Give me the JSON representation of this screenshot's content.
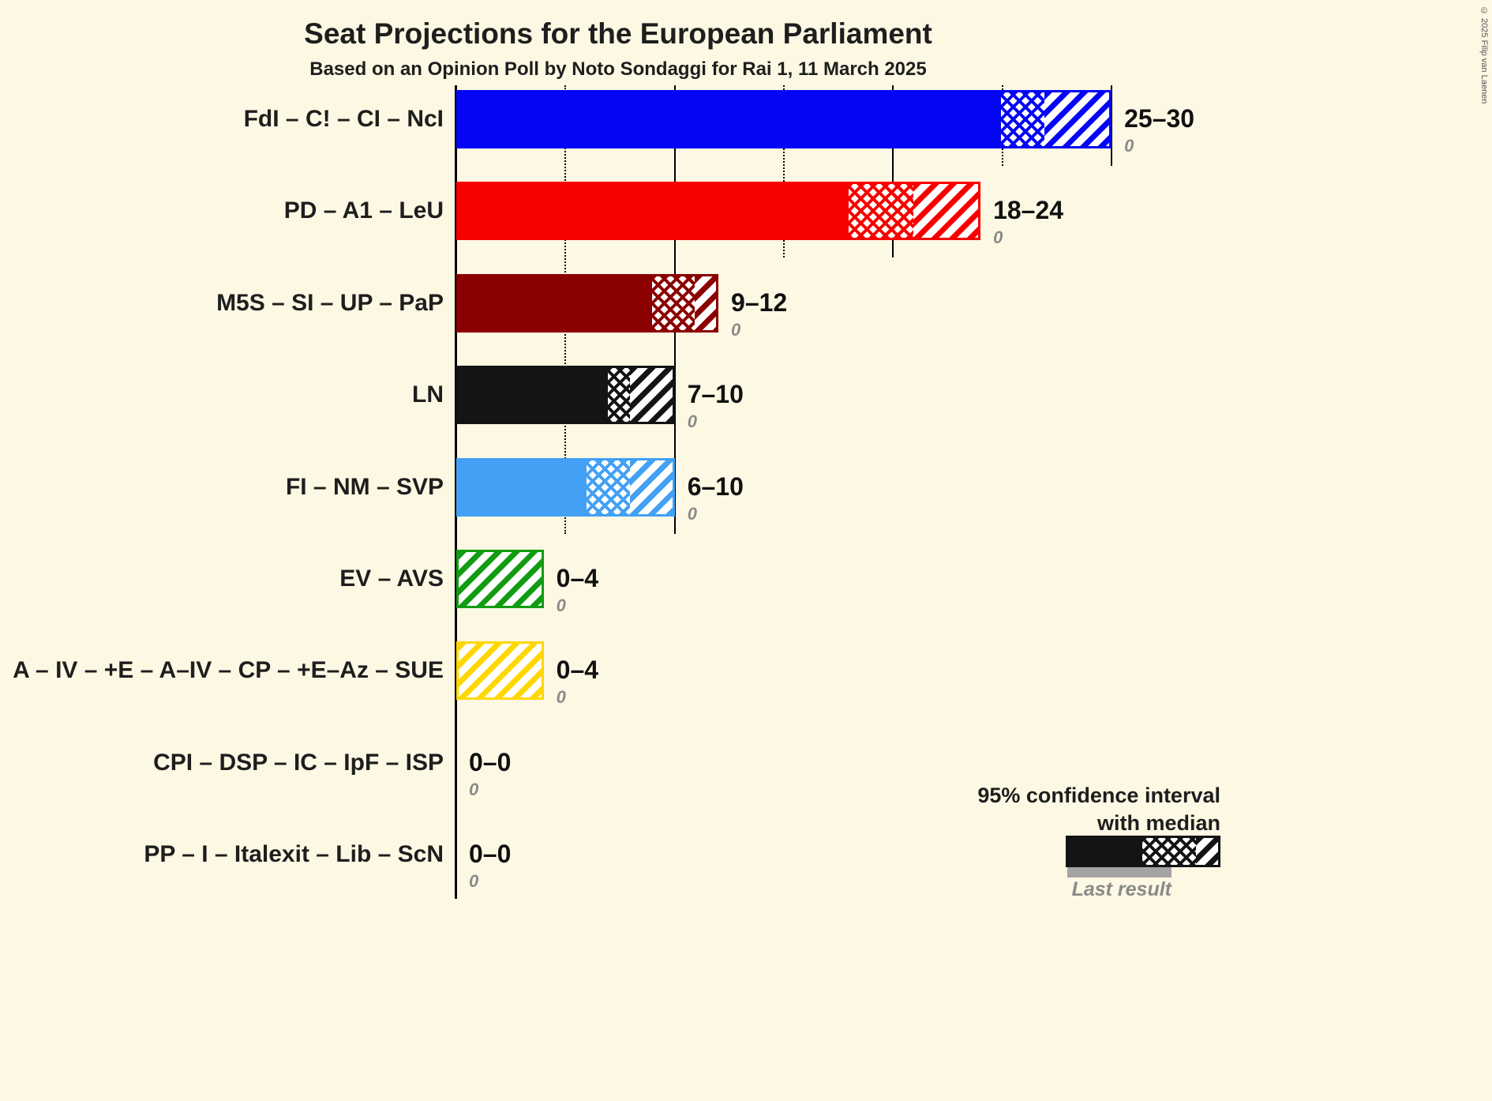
{
  "title": "Seat Projections for the European Parliament",
  "subtitle": "Based on an Opinion Poll by Noto Sondaggi for Rai 1, 11 March 2025",
  "copyright": "© 2025 Filip van Laenen",
  "legend": {
    "line1": "95% confidence interval",
    "line2": "with median",
    "last_result_label": "Last result"
  },
  "chart_data": {
    "type": "bar",
    "orientation": "horizontal",
    "x_axis": {
      "min": 0,
      "max": 30,
      "ticks": [
        {
          "value": 5,
          "style": "dotted"
        },
        {
          "value": 10,
          "style": "solid"
        },
        {
          "value": 15,
          "style": "dotted"
        },
        {
          "value": 20,
          "style": "solid"
        },
        {
          "value": 25,
          "style": "dotted"
        },
        {
          "value": 30,
          "style": "solid"
        }
      ]
    },
    "rows": [
      {
        "label": "FdI – C! – CI – NcI",
        "color": "#0505F5",
        "ci_low": 25,
        "median": 27,
        "ci_high": 30,
        "range_label": "25–30",
        "last_result": "0"
      },
      {
        "label": "PD – A1 – LeU",
        "color": "#F80000",
        "ci_low": 18,
        "median": 21,
        "ci_high": 24,
        "range_label": "18–24",
        "last_result": "0"
      },
      {
        "label": "M5S – SI – UP – PaP",
        "color": "#8B0000",
        "ci_low": 9,
        "median": 11,
        "ci_high": 12,
        "range_label": "9–12",
        "last_result": "0"
      },
      {
        "label": "LN",
        "color": "#141414",
        "ci_low": 7,
        "median": 8,
        "ci_high": 10,
        "range_label": "7–10",
        "last_result": "0"
      },
      {
        "label": "FI – NM – SVP",
        "color": "#42A0F5",
        "ci_low": 6,
        "median": 8,
        "ci_high": 10,
        "range_label": "6–10",
        "last_result": "0"
      },
      {
        "label": "EV – AVS",
        "color": "#119C11",
        "ci_low": 0,
        "median": 0,
        "ci_high": 4,
        "range_label": "0–4",
        "last_result": "0"
      },
      {
        "label": "A – IV – +E – A–IV – CP – +E–Az – SUE",
        "color": "#FFD700",
        "ci_low": 0,
        "median": 0,
        "ci_high": 4,
        "range_label": "0–4",
        "last_result": "0"
      },
      {
        "label": "CPI – DSP – IC – IpF – ISP",
        "color": "#888888",
        "ci_low": 0,
        "median": 0,
        "ci_high": 0,
        "range_label": "0–0",
        "last_result": "0"
      },
      {
        "label": "PP – I – Italexit – Lib – ScN",
        "color": "#888888",
        "ci_low": 0,
        "median": 0,
        "ci_high": 0,
        "range_label": "0–0",
        "last_result": "0"
      }
    ]
  }
}
